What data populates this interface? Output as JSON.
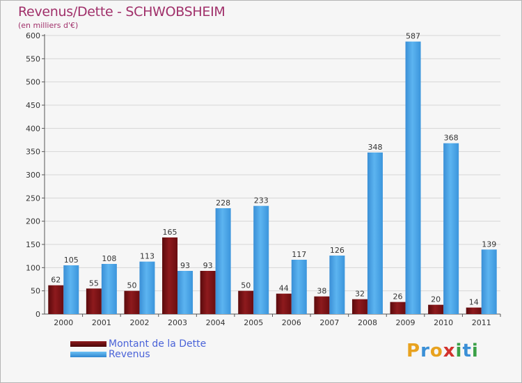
{
  "title": "Revenus/Dette - SCHWOBSHEIM",
  "subtitle": "(en milliers d'€)",
  "colors": {
    "debt": "#7a1012",
    "revenue": "#4aa3e6",
    "title": "#a0306a",
    "legend_text": "#4a63d8"
  },
  "chart_data": {
    "type": "bar",
    "title": "Revenus/Dette - SCHWOBSHEIM",
    "ylabel": "(en milliers d'€)",
    "categories": [
      "2000",
      "2001",
      "2002",
      "2003",
      "2004",
      "2005",
      "2006",
      "2007",
      "2008",
      "2009",
      "2010",
      "2011"
    ],
    "series": [
      {
        "name": "Montant de la Dette",
        "values": [
          62,
          55,
          50,
          165,
          93,
          50,
          44,
          38,
          32,
          26,
          20,
          14
        ]
      },
      {
        "name": "Revenus",
        "values": [
          105,
          108,
          113,
          93,
          228,
          233,
          117,
          126,
          348,
          587,
          368,
          139
        ]
      }
    ],
    "ylim": [
      0,
      600
    ],
    "yticks": [
      0,
      50,
      100,
      150,
      200,
      250,
      300,
      350,
      400,
      450,
      500,
      550,
      600
    ],
    "grid": true,
    "legend_position": "bottom-left"
  },
  "legend": {
    "items": [
      "Montant de la Dette",
      "Revenus"
    ]
  },
  "logo": {
    "letters": [
      "P",
      "r",
      "o",
      "x",
      "i",
      "t",
      "i"
    ],
    "colors": [
      "#e8a21f",
      "#3a8fd6",
      "#e8a21f",
      "#d2322d",
      "#3aa046",
      "#3a8fd6",
      "#3aa046"
    ]
  }
}
